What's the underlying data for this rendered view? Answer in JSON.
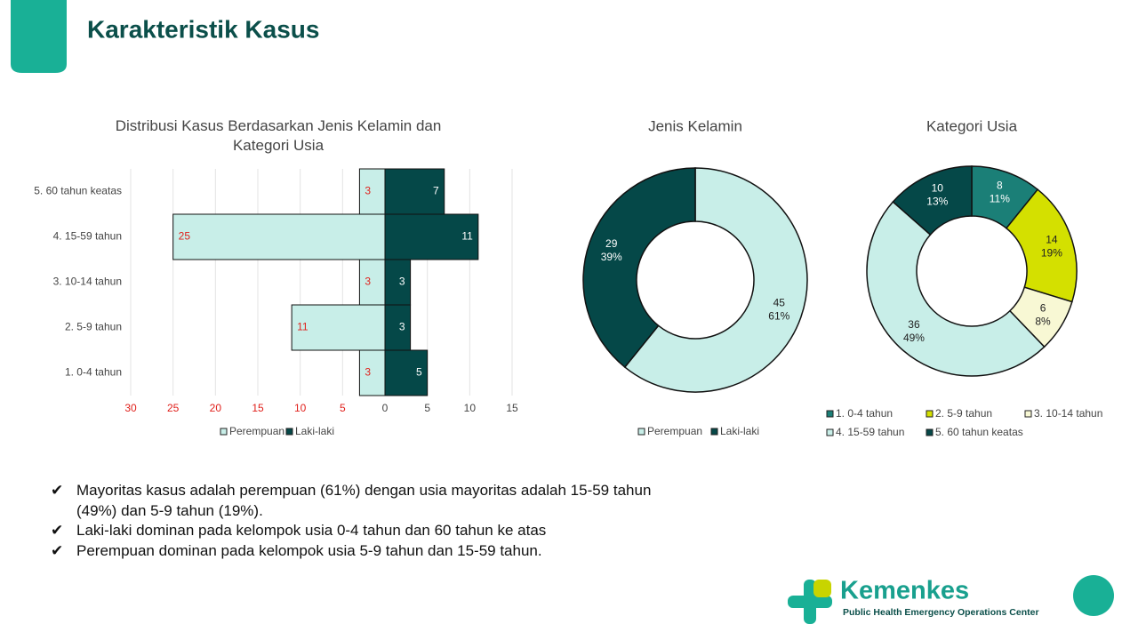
{
  "title": "Karakteristik Kasus",
  "chart_data": [
    {
      "type": "bar",
      "orientation": "horizontal",
      "title": "Distribusi Kasus Berdasarkan Jenis Kelamin dan Kategori Usia",
      "categories": [
        "1. 0-4 tahun",
        "2. 5-9 tahun",
        "3. 10-14 tahun",
        "4. 15-59 tahun",
        "5. 60 tahun keatas"
      ],
      "series": [
        {
          "name": "Perempuan",
          "color": "#c8eee8",
          "values": [
            -3,
            -11,
            -3,
            -25,
            -3
          ],
          "value_labels": [
            "3",
            "11",
            "3",
            "25",
            "3"
          ]
        },
        {
          "name": "Laki-laki",
          "color": "#054848",
          "values": [
            5,
            3,
            3,
            11,
            7
          ]
        }
      ],
      "xlim": [
        -30,
        15
      ],
      "xticks": [
        {
          "value": -30,
          "label": "30"
        },
        {
          "value": -25,
          "label": "25"
        },
        {
          "value": -20,
          "label": "20"
        },
        {
          "value": -15,
          "label": "15"
        },
        {
          "value": -10,
          "label": "10"
        },
        {
          "value": -5,
          "label": "5"
        },
        0,
        5,
        10,
        15
      ],
      "grid": true,
      "legend": "bottom"
    },
    {
      "type": "pie",
      "title": "Jenis Kelamin",
      "categories": [
        "Perempuan",
        "Laki-laki"
      ],
      "values": [
        45,
        29
      ],
      "percent_labels": [
        "61%",
        "39%"
      ],
      "colors": [
        "#c8eee8",
        "#054848"
      ],
      "legend": "bottom"
    },
    {
      "type": "pie",
      "title": "Kategori Usia",
      "categories": [
        "1. 0-4 tahun",
        "2. 5-9 tahun",
        "3. 10-14 tahun",
        "4. 15-59 tahun",
        "5. 60 tahun keatas"
      ],
      "values": [
        8,
        14,
        6,
        36,
        10
      ],
      "percent_labels": [
        "11%",
        "19%",
        "8%",
        "49%",
        "13%"
      ],
      "colors": [
        "#1b7f77",
        "#d4e000",
        "#f8f8d4",
        "#c8eee8",
        "#054848"
      ],
      "legend": "bottom"
    }
  ],
  "bullets": [
    "Mayoritas kasus adalah perempuan (61%) dengan usia mayoritas adalah 15-59 tahun (49%) dan 5-9 tahun (19%).",
    "Laki-laki dominan pada kelompok usia 0-4 tahun dan 60 tahun ke atas",
    "Perempuan dominan pada kelompok usia 5-9 tahun dan 15-59 tahun."
  ],
  "logo": {
    "name": "Kemenkes",
    "subtitle": "Public Health Emergency Operations Center"
  }
}
